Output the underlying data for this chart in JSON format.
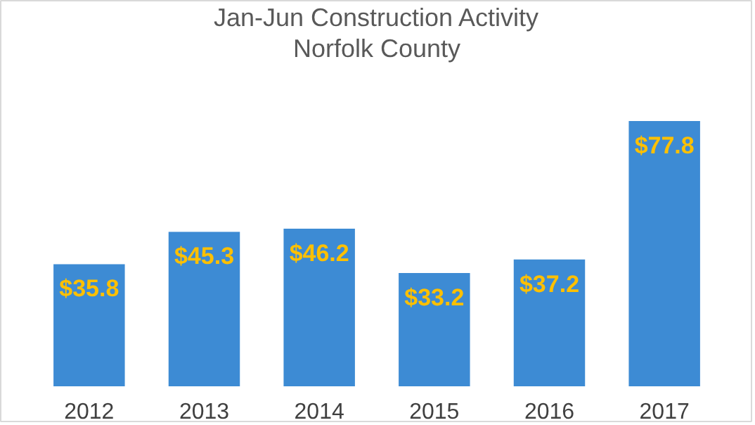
{
  "chart_data": {
    "type": "bar",
    "title": "Jan-Jun Construction Activity",
    "subtitle": "Norfolk County",
    "categories": [
      "2012",
      "2013",
      "2014",
      "2015",
      "2016",
      "2017"
    ],
    "values": [
      35.8,
      45.3,
      46.2,
      33.2,
      37.2,
      77.8
    ],
    "value_labels": [
      "$35.8",
      "$45.3",
      "$46.2",
      "$33.2",
      "$37.2",
      "$77.8"
    ],
    "color": "#3d8bd4"
  }
}
